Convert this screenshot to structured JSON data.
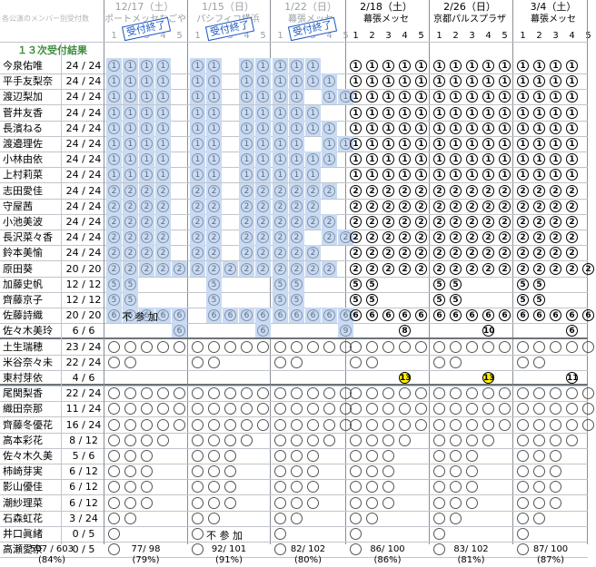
{
  "header": {
    "top_left": "各公演のメンバー別受付数",
    "result_label": "１３次受付結果"
  },
  "events": [
    {
      "date": "12/17（土）",
      "venue": "ポートメッセなごや",
      "faded": true,
      "stamp": "受付終了"
    },
    {
      "date": "1/15（日）",
      "venue": "パシフィコ横浜",
      "faded": true,
      "stamp": "受付終了"
    },
    {
      "date": "1/22（日）",
      "venue": "幕張メッセ",
      "faded": true,
      "stamp": "受付終了"
    },
    {
      "date": "2/18（土）",
      "venue": "幕張メッセ",
      "faded": false,
      "stamp": ""
    },
    {
      "date": "2/26（日）",
      "venue": "京都パルスプラザ",
      "faded": false,
      "stamp": ""
    },
    {
      "date": "3/4（土）",
      "venue": "幕張メッセ",
      "faded": false,
      "stamp": ""
    }
  ],
  "slots": [
    "1",
    "2",
    "3",
    "4",
    "5"
  ],
  "members": [
    {
      "name": "今泉佑唯",
      "count": "24 / 24"
    },
    {
      "name": "平手友梨奈",
      "count": "24 / 24"
    },
    {
      "name": "渡辺梨加",
      "count": "24 / 24"
    },
    {
      "name": "菅井友香",
      "count": "24 / 24"
    },
    {
      "name": "長濱ねる",
      "count": "24 / 24"
    },
    {
      "name": "渡邉理佐",
      "count": "24 / 24"
    },
    {
      "name": "小林由依",
      "count": "24 / 24"
    },
    {
      "name": "上村莉菜",
      "count": "24 / 24"
    },
    {
      "name": "志田愛佳",
      "count": "24 / 24"
    },
    {
      "name": "守屋茜",
      "count": "24 / 24"
    },
    {
      "name": "小池美波",
      "count": "24 / 24"
    },
    {
      "name": "長沢菜々香",
      "count": "24 / 24"
    },
    {
      "name": "鈴本美愉",
      "count": "24 / 24"
    },
    {
      "name": "原田葵",
      "count": "20 / 20"
    },
    {
      "name": "加藤史帆",
      "count": "12 / 12"
    },
    {
      "name": "齊藤京子",
      "count": "12 / 12"
    },
    {
      "name": "佐藤詩織",
      "count": "20 / 20"
    },
    {
      "name": "佐々木美玲",
      "count": "6 / 6"
    },
    {
      "name": "土生瑞穂",
      "count": "23 / 24"
    },
    {
      "name": "米谷奈々未",
      "count": "22 / 24"
    },
    {
      "name": "東村芽依",
      "count": "4 / 6"
    },
    {
      "name": "尾関梨香",
      "count": "22 / 24"
    },
    {
      "name": "織田奈那",
      "count": "11 / 24"
    },
    {
      "name": "齊藤冬優花",
      "count": "16 / 24"
    },
    {
      "name": "高本彩花",
      "count": "8 / 12"
    },
    {
      "name": "佐々木久美",
      "count": "5 / 6"
    },
    {
      "name": "柿崎芽実",
      "count": "6 / 12"
    },
    {
      "name": "影山優佳",
      "count": "6 / 12"
    },
    {
      "name": "潮紗理菜",
      "count": "6 / 12"
    },
    {
      "name": "石森虹花",
      "count": "3 / 24"
    },
    {
      "name": "井口眞緒",
      "count": "0 / 5"
    },
    {
      "name": "高瀬愛奈",
      "count": "0 / 5"
    }
  ],
  "notes": {
    "sato_fusanka": "不 参 加",
    "iguchi_fusanka": "不 参 加"
  },
  "totals": [
    {
      "value": "507 / 603",
      "pct": "(84%)"
    },
    {
      "value": "77/ 98",
      "pct": "(79%)"
    },
    {
      "value": "92/ 101",
      "pct": "(91%)"
    },
    {
      "value": "82/ 102",
      "pct": "(80%)"
    },
    {
      "value": "86/ 100",
      "pct": "(86%)"
    },
    {
      "value": "83/ 102",
      "pct": "(81%)"
    },
    {
      "value": "87/ 100",
      "pct": "(87%)"
    }
  ],
  "grid": [
    [
      "1111.",
      "11.11",
      "111..",
      "11111",
      "11111",
      "1111."
    ],
    [
      "1111.",
      "11.11",
      "1111.",
      "11111",
      "11111",
      "1111."
    ],
    [
      "1111.",
      "11.11",
      "11.11",
      "11111",
      "11111",
      "1111."
    ],
    [
      "1111.",
      "11.11",
      "111..",
      "11111",
      "11111",
      "1111."
    ],
    [
      "1111.",
      "11.11",
      "1111.",
      "11111",
      "11111",
      "1111."
    ],
    [
      "1111.",
      "11.11",
      "11.11",
      "11111",
      "11111",
      "1111."
    ],
    [
      "1111.",
      "11.11",
      "1111.",
      "11111",
      "11111",
      "1111."
    ],
    [
      "1111.",
      "11.11",
      "111..",
      "11111",
      "11111",
      "1111."
    ],
    [
      "2222.",
      "22.22",
      "2222.",
      "22222",
      "22222",
      "2222."
    ],
    [
      "2222.",
      "22.22",
      "222..",
      "22222",
      "22222",
      "2222."
    ],
    [
      "2222.",
      "22.22",
      "2222.",
      "22222",
      "22222",
      "2222."
    ],
    [
      "2222.",
      "22.22",
      "22.22",
      "22222",
      "22222",
      "2222."
    ],
    [
      "2222.",
      "22.22",
      "222..",
      "22222",
      "22222",
      "2222."
    ],
    [
      "22222",
      "22222",
      "2222.",
      "22222",
      "22222",
      "22222"
    ],
    [
      "55...",
      ".5...",
      "55...",
      "55...",
      "55...",
      "55..."
    ],
    [
      "55...",
      ".5...",
      "55...",
      "55...",
      "55...",
      "55..."
    ],
    [
      "66666",
      ".6666",
      "66666",
      "66666",
      "66666",
      "66666"
    ],
    [
      "....6",
      "....6",
      "....9",
      "...8.",
      "...a.",
      "...6."
    ],
    [
      "OOOOO",
      "OOOOO",
      "OOOOO",
      "OOOOO",
      "OOOOO",
      "OOOOO"
    ],
    [
      "OO...",
      "OO...",
      "OO...",
      "OO...",
      "OO...",
      "OO..."
    ],
    [
      ".....",
      ".....",
      ".....",
      "...Y.",
      "...Y.",
      "...b."
    ],
    [
      "OOOOO",
      "OOOOO",
      "OOOOO",
      "OOOOO",
      "OOOOO",
      "OOOOO"
    ],
    [
      "OOOOO",
      "OOOOO",
      "OOOOO",
      "OOOOO",
      "OOOOO",
      "OOOOO"
    ],
    [
      "OOOOO",
      "OOOOO",
      "OOOOO",
      "OOOOO",
      "OOOOO",
      "OOOOO"
    ],
    [
      "OOOO.",
      "OOOO.",
      "OOOO.",
      "OOOO.",
      "OOOO.",
      "OOOO."
    ],
    [
      "OOO..",
      "OOO..",
      "OOO..",
      "OOO..",
      "OOO..",
      "OOO.."
    ],
    [
      "OOO..",
      "OOO..",
      "OOO..",
      "OOO..",
      "OOO..",
      "OOO.."
    ],
    [
      "OOO..",
      "OOO..",
      "OOO..",
      "OOO..",
      "OOO..",
      "OOO.."
    ],
    [
      "OOO..",
      "OOO..",
      "OOO..",
      "OOO..",
      "OOO..",
      "OOO.."
    ],
    [
      "OO...",
      "OO...",
      "OO...",
      "OO...",
      "OO...",
      "OO..."
    ],
    [
      "O....",
      "O....",
      "O....",
      "O....",
      "O....",
      "O...."
    ],
    [
      "O....",
      "O....",
      "O....",
      "O....",
      "O....",
      "O...."
    ]
  ]
}
